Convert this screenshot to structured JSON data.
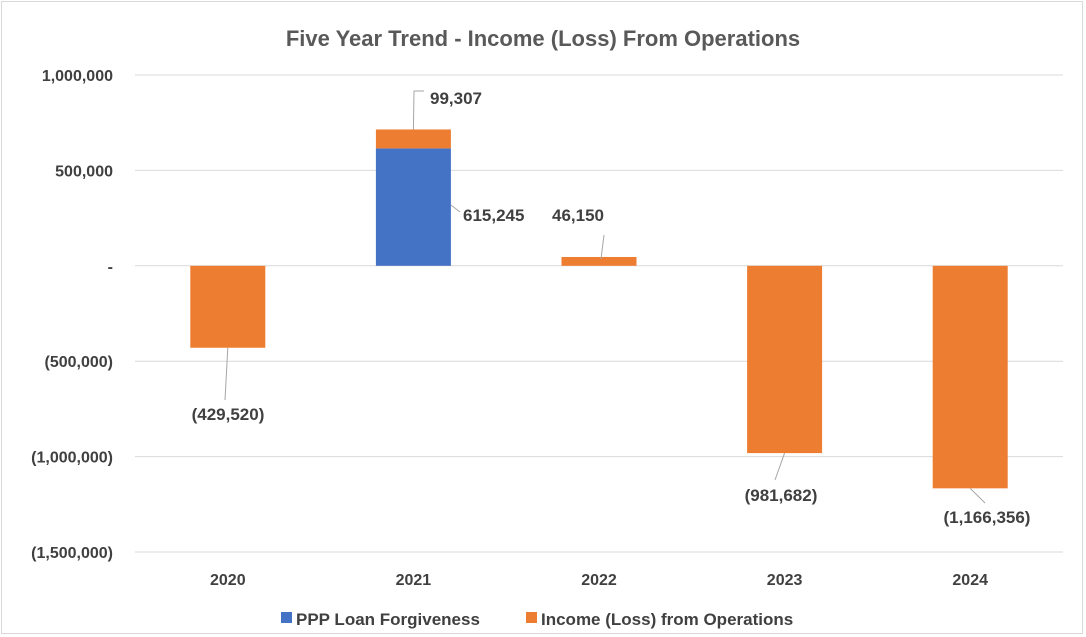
{
  "chart_data": {
    "type": "bar",
    "stacked": true,
    "title": "Five Year Trend - Income (Loss) From Operations",
    "xlabel": "",
    "ylabel": "",
    "categories": [
      "2020",
      "2021",
      "2022",
      "2023",
      "2024"
    ],
    "ylim": [
      -1500000,
      1000000
    ],
    "yticks": [
      1000000,
      500000,
      0,
      -500000,
      -1000000,
      -1500000
    ],
    "ytick_labels": [
      "1,000,000",
      "500,000",
      "-",
      "(500,000)",
      "(1,000,000)",
      "(1,500,000)"
    ],
    "grid": true,
    "legend_position": "bottom",
    "series": [
      {
        "name": "PPP Loan Forgiveness",
        "color": "#4472C4",
        "values": [
          null,
          615245,
          null,
          null,
          null
        ],
        "labels": [
          null,
          "615,245",
          null,
          null,
          null
        ]
      },
      {
        "name": "Income (Loss) from Operations",
        "color": "#ED7D31",
        "values": [
          -429520,
          99307,
          46150,
          -981682,
          -1166356
        ],
        "labels": [
          "(429,520)",
          "99,307",
          "46,150",
          "(981,682)",
          "(1,166,356)"
        ]
      }
    ]
  }
}
